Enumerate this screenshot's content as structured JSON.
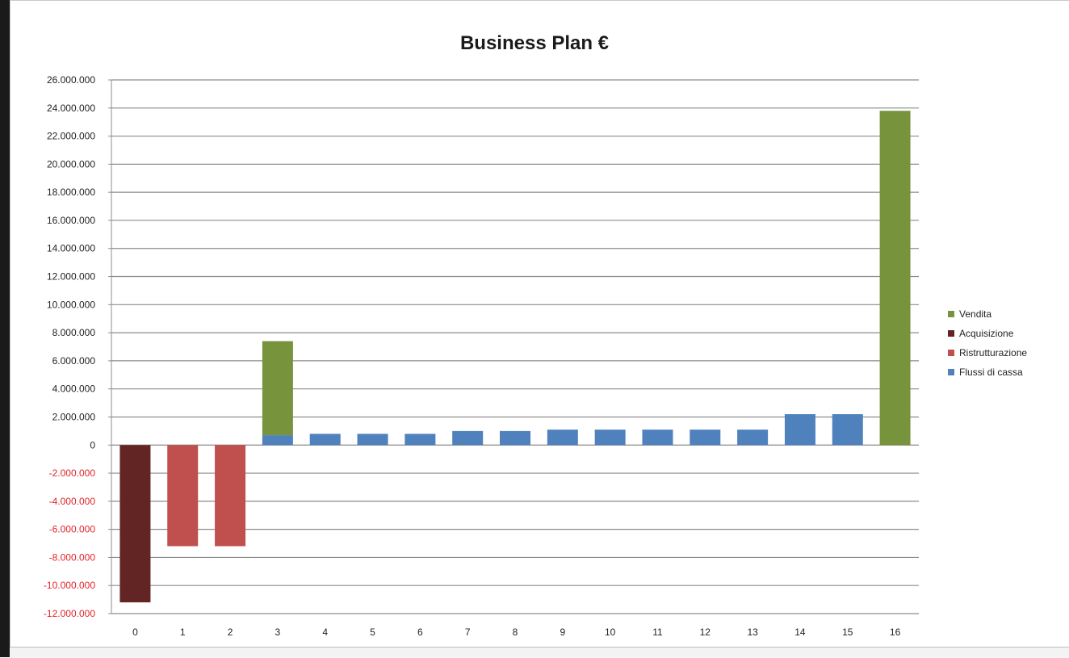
{
  "chart_data": {
    "type": "bar",
    "stacked": true,
    "title": "Business Plan €",
    "xlabel": "",
    "ylabel": "",
    "categories": [
      "0",
      "1",
      "2",
      "3",
      "4",
      "5",
      "6",
      "7",
      "8",
      "9",
      "10",
      "11",
      "12",
      "13",
      "14",
      "15",
      "16"
    ],
    "ylim": [
      -12000000,
      26000000
    ],
    "ytick_step": 2000000,
    "yticks": [
      "26.000.000",
      "24.000.000",
      "22.000.000",
      "20.000.000",
      "18.000.000",
      "16.000.000",
      "14.000.000",
      "12.000.000",
      "10.000.000",
      "8.000.000",
      "6.000.000",
      "4.000.000",
      "2.000.000",
      "0",
      "-2.000.000",
      "-4.000.000",
      "-6.000.000",
      "-8.000.000",
      "-10.000.000",
      "-12.000.000"
    ],
    "negative_tick_color": "#e0242a",
    "grid": true,
    "legend_position": "right",
    "series": [
      {
        "name": "Flussi di cassa",
        "color": "#4f81bd",
        "values": [
          0,
          0,
          0,
          700000,
          800000,
          800000,
          800000,
          1000000,
          1000000,
          1100000,
          1100000,
          1100000,
          1100000,
          1100000,
          2200000,
          2200000,
          0
        ]
      },
      {
        "name": "Ristrutturazione",
        "color": "#c0504d",
        "values": [
          0,
          -7200000,
          -7200000,
          0,
          0,
          0,
          0,
          0,
          0,
          0,
          0,
          0,
          0,
          0,
          0,
          0,
          0
        ]
      },
      {
        "name": "Acquisizione",
        "color": "#632523",
        "values": [
          -11200000,
          0,
          0,
          0,
          0,
          0,
          0,
          0,
          0,
          0,
          0,
          0,
          0,
          0,
          0,
          0,
          0
        ]
      },
      {
        "name": "Vendita",
        "color": "#77933c",
        "values": [
          0,
          0,
          0,
          6700000,
          0,
          0,
          0,
          0,
          0,
          0,
          0,
          0,
          0,
          0,
          0,
          0,
          23800000
        ]
      }
    ],
    "legend_order": [
      "Vendita",
      "Acquisizione",
      "Ristrutturazione",
      "Flussi di cassa"
    ]
  }
}
